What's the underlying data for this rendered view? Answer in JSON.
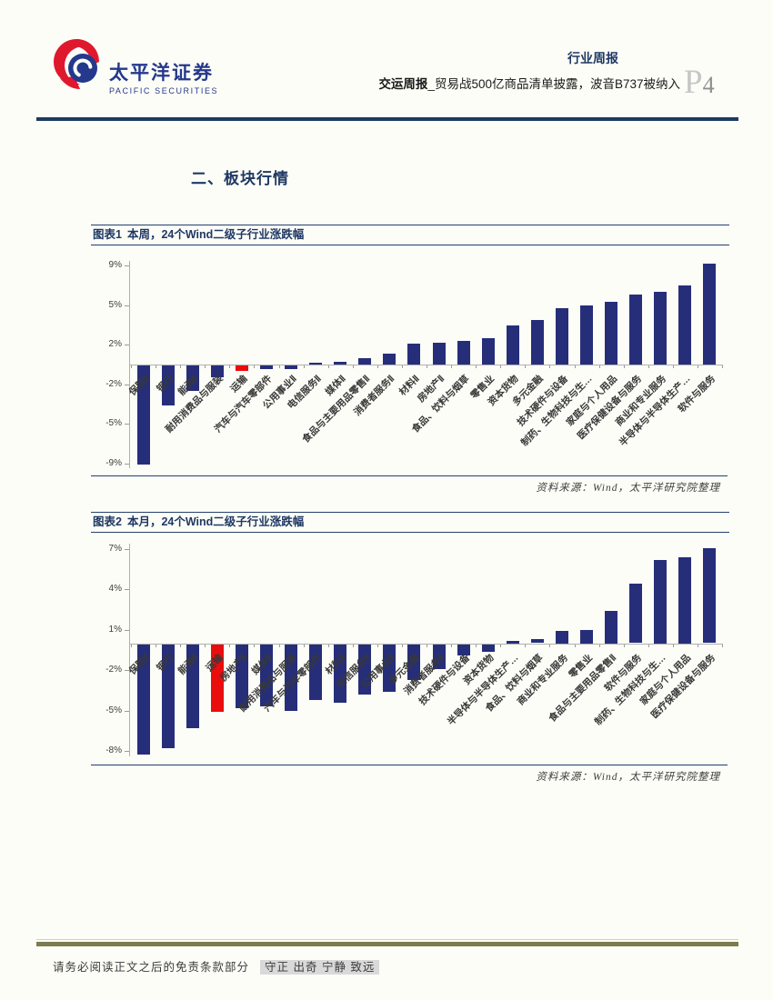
{
  "header": {
    "brand_cn": "太平洋证券",
    "brand_en": "PACIFIC SECURITIES",
    "report_type": "行业周报",
    "title_bold": "交运周报",
    "title_rest": "_贸易战500亿商品清单披露，波音B737被纳入",
    "page_letter": "P",
    "page_number": "4"
  },
  "section_title": "二、板块行情",
  "colors": {
    "navy_bar": "#262e7a",
    "highlight_red": "#e90d0d",
    "navy_text": "#1f3864",
    "header_rule": "#1e3a5f",
    "footer_rule": "#7b7b4f"
  },
  "chart_data": [
    {
      "type": "bar",
      "caption_label": "图表1",
      "caption_text": "本周，24个Wind二级子行业涨跌幅",
      "source": "资料来源：Wind，太平洋研究院整理",
      "ylim": [
        -9.35,
        9.35
      ],
      "ticks": [
        {
          "value": 8.9,
          "label": "9%"
        },
        {
          "value": 5.34,
          "label": "5%"
        },
        {
          "value": 1.78,
          "label": "2%"
        },
        {
          "value": -1.78,
          "label": "-2%"
        },
        {
          "value": -5.34,
          "label": "-5%"
        },
        {
          "value": -8.9,
          "label": "-9%"
        }
      ],
      "categories": [
        "保险Ⅱ",
        "银行",
        "能源Ⅱ",
        "耐用消费品与服装",
        "运输",
        "汽车与汽车零部件",
        "公用事业Ⅱ",
        "电信服务Ⅱ",
        "媒体Ⅱ",
        "食品与主要用品零售Ⅱ",
        "消费者服务Ⅱ",
        "材料Ⅱ",
        "房地产Ⅱ",
        "食品、饮料与烟草",
        "零售业",
        "资本货物",
        "多元金融",
        "技术硬件与设备",
        "制药、生物科技与生…",
        "家庭与个人用品",
        "医疗保健设备与服务",
        "商业和专业服务",
        "半导体与半导体生产…",
        "软件与服务"
      ],
      "values": [
        -8.9,
        -3.6,
        -2.3,
        -1.1,
        -0.5,
        -0.35,
        -0.3,
        0.2,
        0.25,
        0.6,
        0.95,
        1.85,
        2.0,
        2.1,
        2.4,
        3.5,
        4.0,
        5.1,
        5.3,
        5.7,
        6.3,
        6.6,
        7.1,
        9.1
      ],
      "highlight_index": 4,
      "highlight_category": "运输"
    },
    {
      "type": "bar",
      "caption_label": "图表2",
      "caption_text": "本月，24个Wind二级子行业涨跌幅",
      "source": "资料来源：Wind，太平洋研究院整理",
      "ylim": [
        -8.4,
        7.4
      ],
      "ticks": [
        {
          "value": 7,
          "label": "7%"
        },
        {
          "value": 4,
          "label": "4%"
        },
        {
          "value": 1,
          "label": "1%"
        },
        {
          "value": -2,
          "label": "-2%"
        },
        {
          "value": -5,
          "label": "-5%"
        },
        {
          "value": -8,
          "label": "-8%"
        }
      ],
      "categories": [
        "保险Ⅱ",
        "银行",
        "能源Ⅱ",
        "运输",
        "房地产Ⅱ",
        "媒体Ⅱ",
        "耐用消费品与服装",
        "汽车与汽车零部件",
        "材料Ⅱ",
        "电信服务Ⅱ",
        "公用事业Ⅱ",
        "多元金融",
        "消费者服务Ⅱ",
        "技术硬件与设备",
        "资本货物",
        "半导体与半导体生产…",
        "食品、饮料与烟草",
        "商业和专业服务",
        "零售业",
        "食品与主要用品零售Ⅱ",
        "软件与服务",
        "制药、生物科技与生…",
        "家庭与个人用品",
        "医疗保健设备与服务"
      ],
      "values": [
        -8.2,
        -7.7,
        -6.2,
        -5.0,
        -4.7,
        -4.6,
        -4.9,
        -4.1,
        -4.3,
        -3.7,
        -3.5,
        -2.6,
        -1.8,
        -0.8,
        -0.55,
        0.2,
        0.3,
        0.95,
        1.0,
        2.4,
        4.4,
        6.2,
        6.4,
        7.05
      ],
      "highlight_index": 3,
      "highlight_category": "运输"
    }
  ],
  "footer": {
    "disclaimer": "请务必阅读正文之后的免责条款部分",
    "motto": "守正 出奇 宁静 致远"
  }
}
